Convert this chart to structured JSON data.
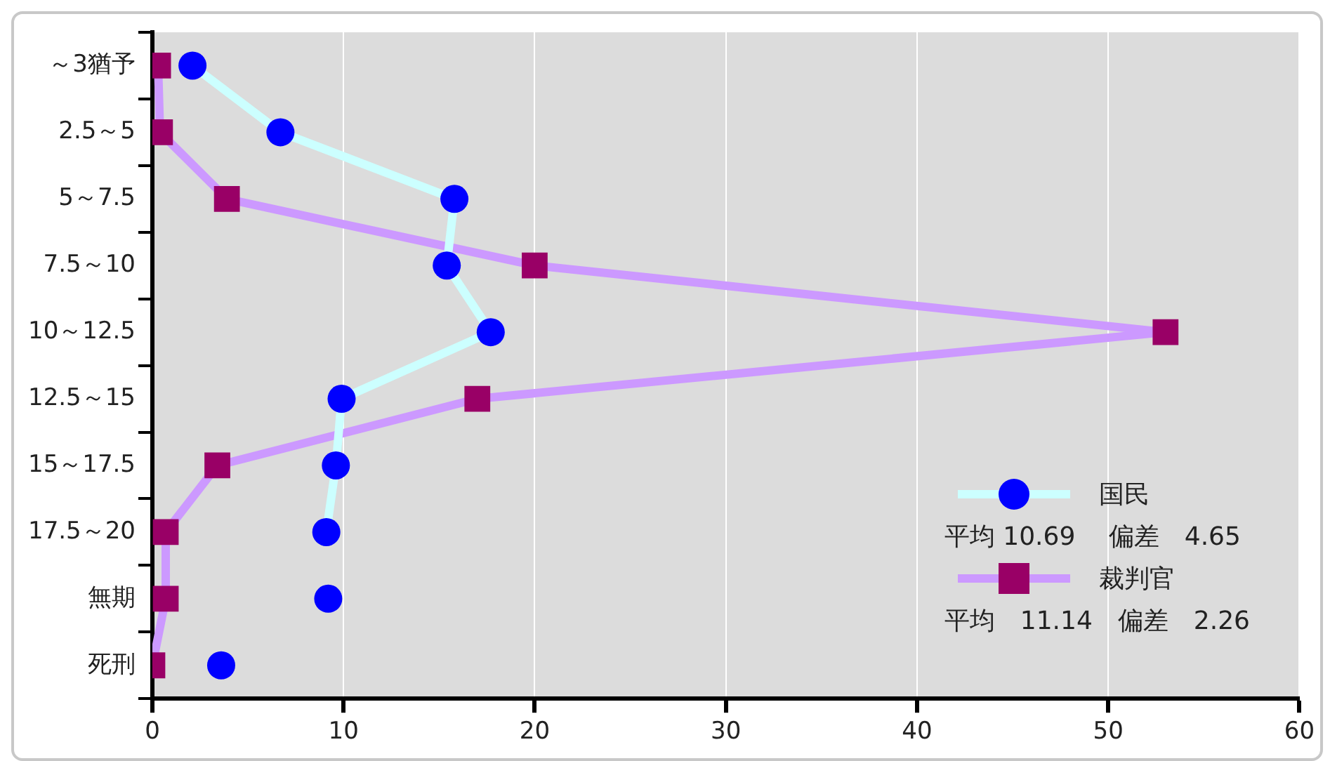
{
  "chart_data": {
    "type": "line",
    "orientation": "horizontal",
    "categories": [
      "～3猶予",
      "2.5～5",
      "5～7.5",
      "7.5～10",
      "10～12.5",
      "12.5～15",
      "15～17.5",
      "17.5～20",
      "無期",
      "死刑"
    ],
    "series": [
      {
        "name": "国民",
        "color": "#ccffff",
        "colors": [
          "#0000ff",
          "#0000ff",
          "#0000ff",
          "#0000ff",
          "#0000ff",
          "#0000ff",
          "#0000ff",
          "#0000ff",
          "#0000ff",
          "#0000ff"
        ],
        "marker": "circle",
        "values": [
          2.1,
          6.7,
          15.8,
          15.4,
          17.7,
          9.9,
          9.6,
          9.1,
          null,
          null
        ]
      },
      {
        "type": "scatter",
        "color": "#0000ff",
        "marker": "circle",
        "values": [
          null,
          null,
          null,
          null,
          null,
          null,
          null,
          null,
          9.2,
          3.6
        ]
      },
      {
        "name": "裁判官",
        "color": "#cc99ff",
        "colors": [
          "#990066",
          "#990066",
          "#990066",
          "#990066",
          "#990066",
          "#990066",
          "#990066",
          "#990066",
          "#990066",
          "#990066"
        ],
        "marker": "square",
        "values": [
          0.3,
          0.4,
          3.9,
          20.0,
          53.0,
          17.0,
          3.4,
          0.7,
          0.7,
          0.0
        ]
      }
    ],
    "xlim": [
      0,
      60
    ],
    "xticks": [
      0,
      10,
      20,
      30,
      40,
      50,
      60
    ],
    "grid": "x",
    "legend": "bottom right",
    "annotations": [
      "平均 10.69　 偏差　4.65",
      "平均　11.14　偏差　2.26"
    ]
  }
}
